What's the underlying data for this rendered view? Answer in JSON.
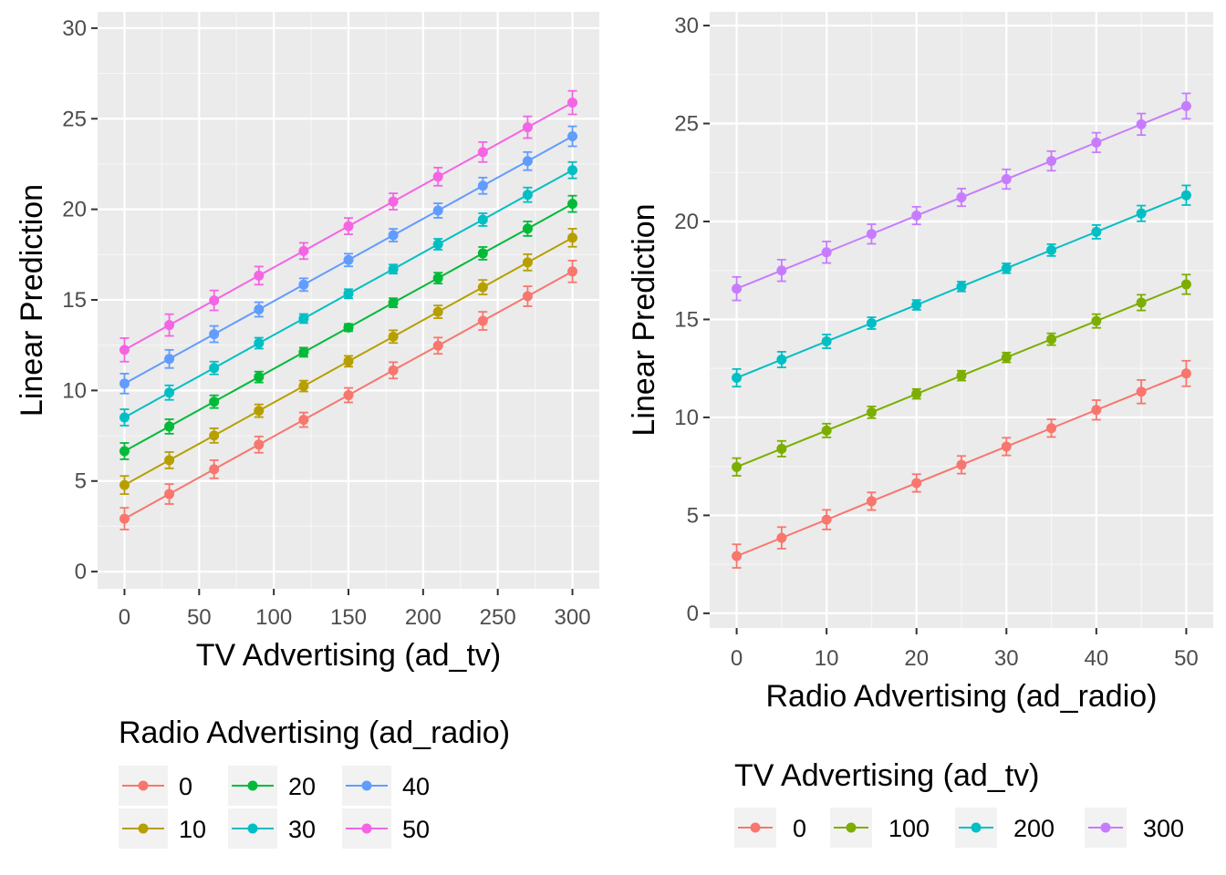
{
  "chart_data": [
    {
      "type": "line",
      "xlabel": "TV Advertising (ad_tv)",
      "ylabel": "Linear Prediction",
      "x": [
        0,
        30,
        60,
        90,
        120,
        150,
        180,
        210,
        240,
        270,
        300
      ],
      "xticks": [
        0,
        50,
        100,
        150,
        200,
        250,
        300
      ],
      "xlim": [
        -18,
        318
      ],
      "yticks": [
        0,
        5,
        10,
        15,
        20,
        25,
        30
      ],
      "ylim": [
        -0.95,
        30.9
      ],
      "grid": true,
      "legend_title": "Radio Advertising (ad_radio)",
      "legend_position": "bottom",
      "legend_columns": 3,
      "series": [
        {
          "name": "0",
          "color": "#F8766D",
          "values": [
            2.92,
            4.28,
            5.65,
            7.01,
            8.38,
            9.74,
            11.11,
            12.47,
            13.84,
            15.2,
            16.57
          ],
          "err": [
            0.6,
            0.55,
            0.5,
            0.45,
            0.4,
            0.4,
            0.45,
            0.45,
            0.5,
            0.55,
            0.6
          ]
        },
        {
          "name": "10",
          "color": "#B79F00",
          "values": [
            4.78,
            6.15,
            7.51,
            8.88,
            10.24,
            11.61,
            12.97,
            14.34,
            15.7,
            17.07,
            18.43
          ],
          "err": [
            0.5,
            0.45,
            0.4,
            0.35,
            0.3,
            0.3,
            0.35,
            0.35,
            0.4,
            0.45,
            0.5
          ]
        },
        {
          "name": "20",
          "color": "#00BA38",
          "values": [
            6.65,
            8.01,
            9.38,
            10.74,
            12.11,
            13.47,
            14.84,
            16.2,
            17.57,
            18.93,
            20.3
          ],
          "err": [
            0.45,
            0.4,
            0.35,
            0.3,
            0.25,
            0.2,
            0.25,
            0.3,
            0.35,
            0.4,
            0.45
          ]
        },
        {
          "name": "30",
          "color": "#00BFC4",
          "values": [
            8.51,
            9.88,
            11.24,
            12.61,
            13.97,
            15.34,
            16.7,
            18.07,
            19.43,
            20.8,
            22.16
          ],
          "err": [
            0.45,
            0.4,
            0.35,
            0.3,
            0.25,
            0.25,
            0.25,
            0.3,
            0.35,
            0.4,
            0.45
          ]
        },
        {
          "name": "40",
          "color": "#619CFF",
          "values": [
            10.38,
            11.74,
            13.11,
            14.47,
            15.84,
            17.2,
            18.57,
            19.93,
            21.3,
            22.66,
            24.03
          ],
          "err": [
            0.55,
            0.5,
            0.45,
            0.4,
            0.35,
            0.35,
            0.35,
            0.4,
            0.45,
            0.5,
            0.55
          ]
        },
        {
          "name": "50",
          "color": "#F564E3",
          "values": [
            12.24,
            13.61,
            14.97,
            16.34,
            17.7,
            19.07,
            20.43,
            21.8,
            23.16,
            24.53,
            25.89
          ],
          "err": [
            0.65,
            0.6,
            0.55,
            0.5,
            0.45,
            0.45,
            0.45,
            0.5,
            0.55,
            0.6,
            0.65
          ]
        }
      ]
    },
    {
      "type": "line",
      "xlabel": "Radio Advertising (ad_radio)",
      "ylabel": "Linear Prediction",
      "x": [
        0,
        5,
        10,
        15,
        20,
        25,
        30,
        35,
        40,
        45,
        50
      ],
      "xticks": [
        0,
        10,
        20,
        30,
        40,
        50
      ],
      "xlim": [
        -3,
        53
      ],
      "yticks": [
        0,
        5,
        10,
        15,
        20,
        25,
        30
      ],
      "ylim": [
        -0.75,
        30.7
      ],
      "grid": true,
      "legend_title": "TV Advertising (ad_tv)",
      "legend_position": "bottom",
      "legend_columns": 4,
      "series": [
        {
          "name": "0",
          "color": "#F8766D",
          "values": [
            2.92,
            3.85,
            4.78,
            5.72,
            6.65,
            7.58,
            8.51,
            9.45,
            10.38,
            11.31,
            12.24
          ],
          "err": [
            0.6,
            0.55,
            0.5,
            0.45,
            0.45,
            0.45,
            0.45,
            0.45,
            0.5,
            0.6,
            0.65
          ]
        },
        {
          "name": "100",
          "color": "#7CAE00",
          "values": [
            7.47,
            8.4,
            9.33,
            10.26,
            11.2,
            12.13,
            13.06,
            13.99,
            14.92,
            15.86,
            16.79
          ],
          "err": [
            0.45,
            0.4,
            0.35,
            0.3,
            0.25,
            0.25,
            0.25,
            0.3,
            0.35,
            0.4,
            0.5
          ]
        },
        {
          "name": "200",
          "color": "#00BFC4",
          "values": [
            12.02,
            12.95,
            13.88,
            14.81,
            15.74,
            16.68,
            17.61,
            18.54,
            19.47,
            20.41,
            21.34
          ],
          "err": [
            0.45,
            0.4,
            0.35,
            0.3,
            0.25,
            0.25,
            0.25,
            0.3,
            0.35,
            0.4,
            0.5
          ]
        },
        {
          "name": "300",
          "color": "#C77CFF",
          "values": [
            16.57,
            17.5,
            18.43,
            19.36,
            20.3,
            21.23,
            22.16,
            23.09,
            24.03,
            24.96,
            25.89
          ],
          "err": [
            0.6,
            0.55,
            0.55,
            0.5,
            0.45,
            0.45,
            0.5,
            0.5,
            0.5,
            0.55,
            0.65
          ]
        }
      ]
    }
  ]
}
